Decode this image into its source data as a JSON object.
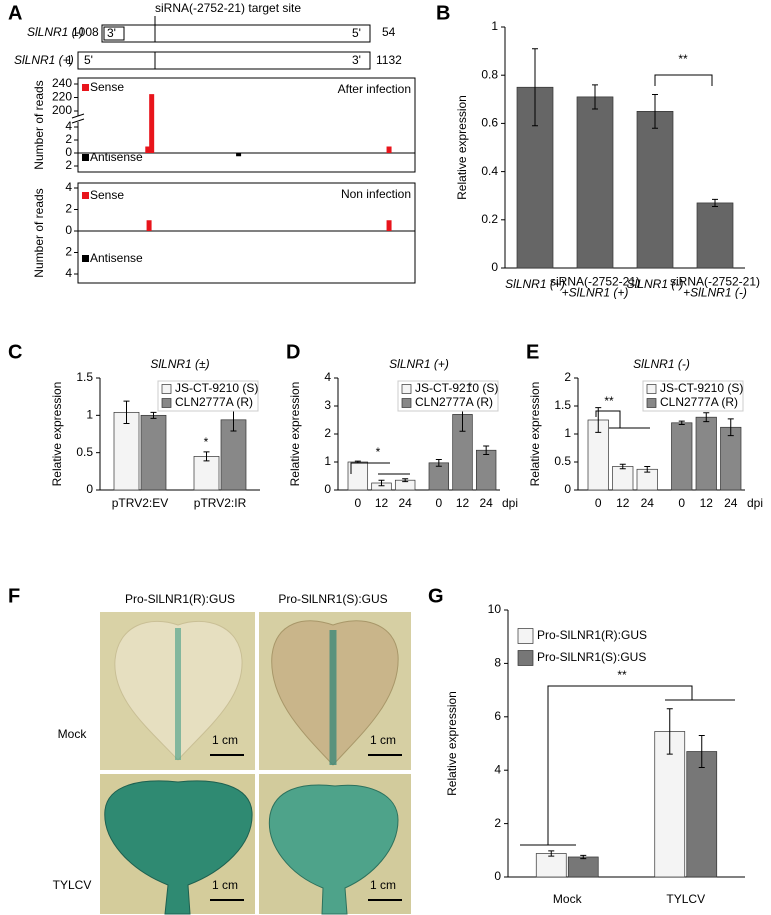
{
  "panel_labels": [
    "A",
    "B",
    "C",
    "D",
    "E",
    "F",
    "G"
  ],
  "panel_a_diagram": {
    "target_label": "siRNA(-2752-21) target site",
    "minus": {
      "name": "SlLNR1 (-)",
      "start": "1008",
      "end": "54",
      "left_end": "3'",
      "right_end": "5'"
    },
    "plus": {
      "name": "SlLNR1 (+)",
      "start": "1",
      "end": "1132",
      "left_end": "5'",
      "right_end": "3'"
    }
  },
  "panel_f": {
    "columns": [
      "Pro-SlLNR1(R):GUS",
      "Pro-SlLNR1(S):GUS"
    ],
    "rows": [
      "Mock",
      "TYLCV"
    ],
    "scale_bar": "1 cm"
  },
  "chart_data": [
    {
      "type": "reads",
      "title": "After infection",
      "ylabel": "Number of reads",
      "legend": [
        "Sense",
        "Antisense"
      ],
      "sense_color": "#e8141b",
      "antisense_color": "#000000",
      "xlim": [
        1,
        1300
      ],
      "ylim": [
        -2,
        240
      ],
      "ybreak": [
        4,
        200
      ],
      "yticks": [
        240,
        220,
        200,
        4,
        2,
        0,
        {
          "value": -2,
          "label": "2"
        }
      ],
      "x": [
        270,
        285,
        620,
        1200
      ],
      "values": [
        1,
        225,
        -0.5,
        1
      ]
    },
    {
      "type": "reads",
      "title": "Non infection",
      "ylabel": "Number of reads",
      "legend": [
        "Sense",
        "Antisense"
      ],
      "sense_color": "#e8141b",
      "antisense_color": "#000000",
      "xlim": [
        1,
        1300
      ],
      "ylim": [
        -4,
        4
      ],
      "yticks": [
        4,
        2,
        0,
        {
          "value": -2,
          "label": "2"
        },
        {
          "value": -4,
          "label": "4"
        }
      ],
      "x": [
        275,
        1200
      ],
      "values": [
        1,
        1
      ]
    },
    {
      "type": "bar",
      "ylabel": "Relative expression",
      "color": "#666666",
      "categories": [
        [
          "SlLNR1 (+)"
        ],
        [
          "siRNA(-2752-21)",
          "+SlLNR1 (+)"
        ],
        [
          "SlLNR1 (-)"
        ],
        [
          "siRNA(-2752-21)",
          "+SlLNR1 (-)"
        ]
      ],
      "values": [
        0.75,
        0.71,
        0.65,
        0.27
      ],
      "errors": [
        0.16,
        0.05,
        0.07,
        0.015
      ],
      "ylim": [
        0,
        1
      ],
      "yticks": [
        0,
        0.2,
        0.4,
        0.6,
        0.8,
        1
      ],
      "annotations": [
        "**"
      ]
    },
    {
      "type": "grouped_bar",
      "title": "SlLNR1 (±)",
      "ylabel": "Relative expression",
      "legend": "upper right",
      "categories": [
        "pTRV2:EV",
        "pTRV2:IR"
      ],
      "series": [
        {
          "name": "JS-CT-9210 (S)",
          "color": "#f4f4f4",
          "values": [
            1.04,
            0.45
          ],
          "errors": [
            0.15,
            0.06
          ]
        },
        {
          "name": "CLN2777A (R)",
          "color": "#888888",
          "values": [
            1.0,
            0.94
          ],
          "errors": [
            0.04,
            0.15
          ]
        }
      ],
      "ylim": [
        0,
        1.5
      ],
      "yticks": [
        0,
        0.5,
        1,
        1.5
      ],
      "annotations": [
        "*"
      ]
    },
    {
      "type": "block_bar",
      "title": "SlLNR1 (+)",
      "ylabel": "Relative expression",
      "legend": "upper right",
      "x_unit": "dpi",
      "categories": [
        "0",
        "12",
        "24"
      ],
      "series": [
        {
          "name": "JS-CT-9210 (S)",
          "color": "#f4f4f4",
          "values": [
            1.0,
            0.25,
            0.35
          ],
          "errors": [
            0.03,
            0.1,
            0.05
          ]
        },
        {
          "name": "CLN2777A (R)",
          "color": "#888888",
          "values": [
            0.97,
            2.7,
            1.42
          ],
          "errors": [
            0.12,
            0.6,
            0.15
          ]
        }
      ],
      "ylim": [
        0,
        4
      ],
      "yticks": [
        0,
        1,
        2,
        3,
        4
      ],
      "annotations": [
        "*",
        "*"
      ]
    },
    {
      "type": "block_bar",
      "title": "SlLNR1 (-)",
      "ylabel": "Relative expression",
      "legend": "upper right",
      "x_unit": "dpi",
      "categories": [
        "0",
        "12",
        "24"
      ],
      "series": [
        {
          "name": "JS-CT-9210 (S)",
          "color": "#f4f4f4",
          "values": [
            1.25,
            0.42,
            0.37
          ],
          "errors": [
            0.22,
            0.04,
            0.05
          ]
        },
        {
          "name": "CLN2777A (R)",
          "color": "#888888",
          "values": [
            1.2,
            1.3,
            1.12
          ],
          "errors": [
            0.03,
            0.08,
            0.15
          ]
        }
      ],
      "ylim": [
        0,
        2
      ],
      "yticks": [
        0,
        0.5,
        1,
        1.5,
        2
      ],
      "annotations": [
        "**"
      ]
    },
    {
      "type": "grouped_bar",
      "ylabel": "Relative expression",
      "legend": "upper left",
      "categories": [
        "Mock",
        "TYLCV"
      ],
      "series": [
        {
          "name": "Pro-SlLNR1(R):GUS",
          "color": "#f4f4f4",
          "values": [
            0.88,
            5.45
          ],
          "errors": [
            0.1,
            0.85
          ]
        },
        {
          "name": "Pro-SlLNR1(S):GUS",
          "color": "#777777",
          "values": [
            0.75,
            4.7
          ],
          "errors": [
            0.06,
            0.6
          ]
        }
      ],
      "ylim": [
        0,
        10
      ],
      "yticks": [
        0,
        2,
        4,
        6,
        8,
        10
      ],
      "annotations": [
        "**"
      ]
    }
  ]
}
